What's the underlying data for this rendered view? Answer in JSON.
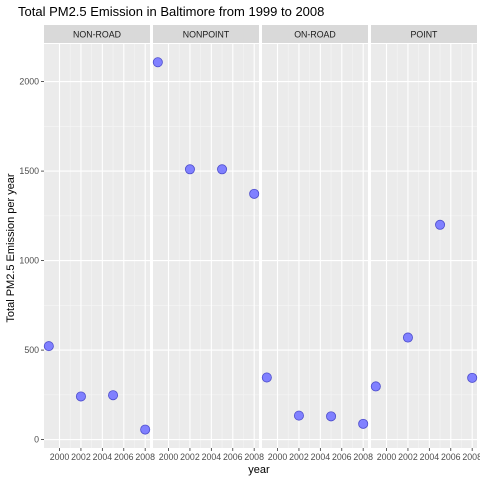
{
  "chart_data": {
    "type": "scatter",
    "title": "Total PM2.5 Emission in Baltimore from 1999 to 2008",
    "xlabel": "year",
    "ylabel": "Total PM2.5 Emission per year",
    "xlim": [
      1998.55,
      2008.45
    ],
    "ylim": [
      -47,
      2210
    ],
    "x_ticks": [
      2000,
      2002,
      2004,
      2006,
      2008
    ],
    "x_tick_labels": [
      "2000",
      "2002",
      "2004",
      "2006",
      "2008"
    ],
    "y_ticks": [
      0,
      500,
      1000,
      1500,
      2000
    ],
    "y_tick_labels": [
      "0",
      "500",
      "1000",
      "1500",
      "2000"
    ],
    "point_color": "#8080ff",
    "point_outline": "#4d4dcc",
    "panel_background": "#ebebeb",
    "strip_background": "#d9d9d9",
    "grid": true,
    "legend": "none",
    "panels": [
      {
        "name": "NON-ROAD",
        "x": [
          1999,
          2002,
          2005,
          2008
        ],
        "y": [
          522,
          241,
          248,
          56
        ]
      },
      {
        "name": "NONPOINT",
        "x": [
          1999,
          2002,
          2005,
          2008
        ],
        "y": [
          2108,
          1510,
          1510,
          1373
        ]
      },
      {
        "name": "ON-ROAD",
        "x": [
          1999,
          2002,
          2005,
          2008
        ],
        "y": [
          347,
          134,
          130,
          88
        ]
      },
      {
        "name": "POINT",
        "x": [
          1999,
          2002,
          2005,
          2008
        ],
        "y": [
          297,
          570,
          1200,
          345
        ]
      }
    ]
  }
}
